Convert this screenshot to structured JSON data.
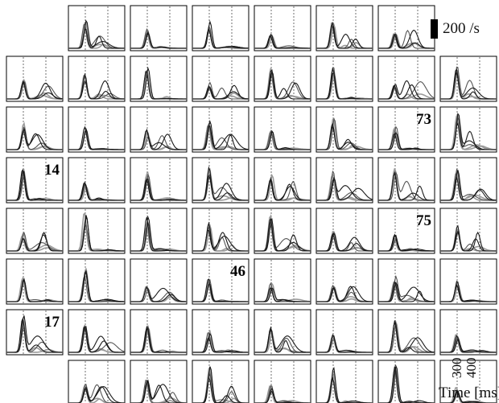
{
  "chart_data": {
    "type": "line",
    "title": "",
    "grid": {
      "rows": 8,
      "cols": 8
    },
    "scale_label": "200 /s",
    "xlabel": "Time [ms]",
    "x_ticks": [
      "300",
      "400"
    ],
    "missing_cells": [
      [
        0,
        0
      ],
      [
        0,
        7
      ],
      [
        7,
        0
      ]
    ],
    "labeled_panels": [
      {
        "row": 2,
        "col": 6,
        "label": "73"
      },
      {
        "row": 3,
        "col": 0,
        "label": "14"
      },
      {
        "row": 4,
        "col": 6,
        "label": "75"
      },
      {
        "row": 5,
        "col": 3,
        "label": "46"
      },
      {
        "row": 6,
        "col": 0,
        "label": "17"
      }
    ],
    "colors": {
      "dark": "#1a1a1a",
      "mid": "#555555",
      "light": "#9a9a9a",
      "frame": "#000000",
      "guide": "#333333"
    }
  }
}
